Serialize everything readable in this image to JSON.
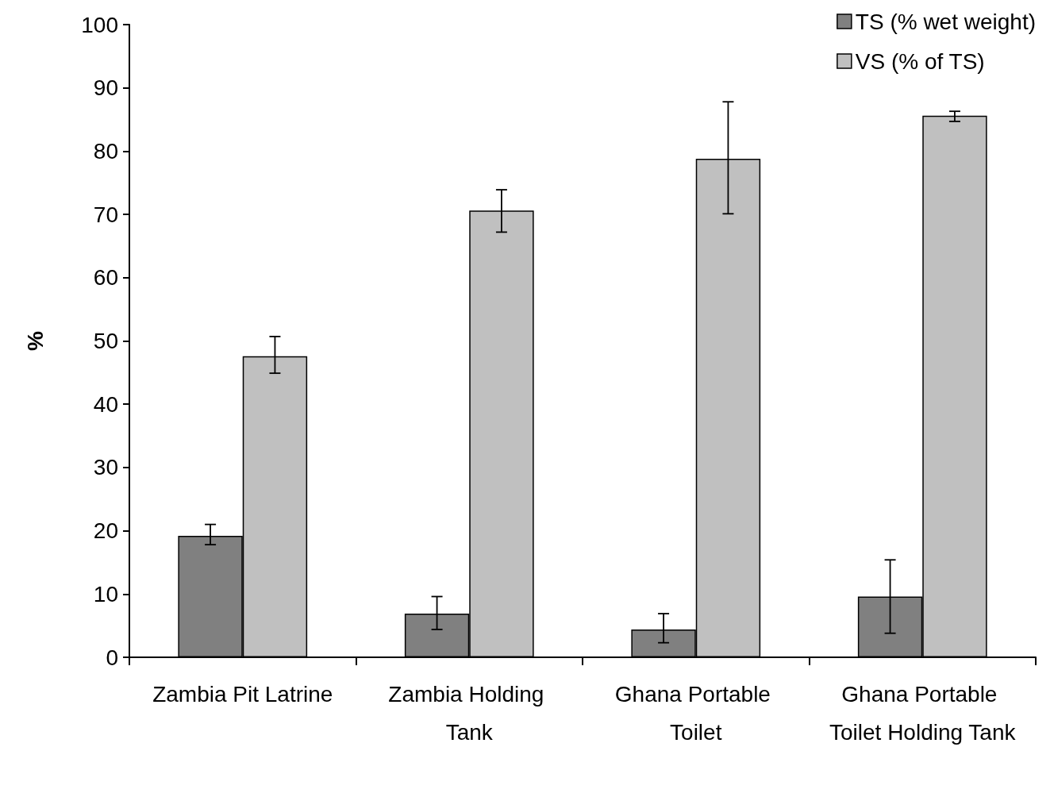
{
  "chart_data": {
    "type": "bar",
    "ylabel": "%",
    "categories": [
      "Zambia Pit Latrine",
      "Zambia Holding Tank",
      "Ghana Portable Toilet",
      "Ghana Portable Toilet Holding Tank"
    ],
    "series": [
      {
        "name": "TS (% wet weight)",
        "color": "#808080",
        "values": [
          19.2,
          6.9,
          4.4,
          9.6
        ],
        "errors": [
          [
            17.8,
            21.0
          ],
          [
            4.4,
            9.6
          ],
          [
            2.3,
            6.9
          ],
          [
            3.8,
            15.4
          ]
        ]
      },
      {
        "name": "VS (% of TS)",
        "color": "#c0c0c0",
        "values": [
          47.6,
          70.6,
          78.8,
          85.6
        ],
        "errors": [
          [
            44.9,
            50.7
          ],
          [
            67.2,
            73.9
          ],
          [
            70.1,
            87.8
          ],
          [
            84.7,
            86.3
          ]
        ]
      }
    ],
    "ylim": [
      0,
      100
    ],
    "yticks": [
      0,
      10,
      20,
      30,
      40,
      50,
      60,
      70,
      80,
      90,
      100
    ],
    "grid": false,
    "legend": "top right"
  }
}
